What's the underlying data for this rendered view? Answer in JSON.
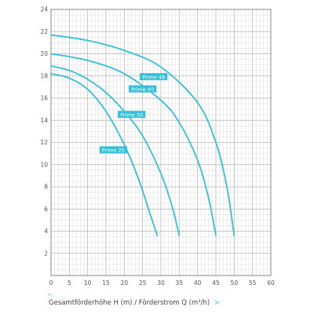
{
  "chart_data": {
    "type": "line",
    "xlabel": "Gesamtförderhöhe H (m) / Förderstrom Q (m³/h)",
    "xlim": [
      0,
      60
    ],
    "ylim": [
      0,
      24
    ],
    "x_ticks": [
      0,
      5,
      10,
      15,
      20,
      25,
      30,
      35,
      40,
      45,
      50,
      55,
      60
    ],
    "y_ticks": [
      2,
      4,
      6,
      8,
      10,
      12,
      14,
      16,
      18,
      20,
      22,
      24
    ],
    "grid": true,
    "line_color": "#33c0d8",
    "series": [
      {
        "name": "Prime 25",
        "x": [
          0,
          5,
          10,
          15,
          20,
          24,
          27,
          29
        ],
        "y": [
          18.2,
          17.8,
          16.8,
          14.8,
          11.8,
          8.6,
          5.6,
          3.6
        ],
        "label_at": [
          17,
          11.3
        ]
      },
      {
        "name": "Prime 30",
        "x": [
          0,
          5,
          10,
          15,
          20,
          25,
          30,
          33,
          35
        ],
        "y": [
          18.9,
          18.5,
          17.7,
          16.5,
          14.8,
          12.6,
          9.2,
          6.3,
          3.6
        ],
        "label_at": [
          22,
          14.5
        ]
      },
      {
        "name": "Prime 40",
        "x": [
          0,
          10,
          20,
          30,
          35,
          40,
          43,
          45
        ],
        "y": [
          20,
          19.4,
          18.2,
          15.8,
          13.8,
          10.4,
          7.0,
          3.6
        ],
        "label_at": [
          25,
          16.8
        ]
      },
      {
        "name": "Prime 48",
        "x": [
          0,
          10,
          20,
          30,
          40,
          45,
          48,
          50
        ],
        "y": [
          21.7,
          21.2,
          20.3,
          18.8,
          15.6,
          12.0,
          8.0,
          3.6
        ],
        "label_at": [
          28,
          17.9
        ]
      }
    ]
  },
  "ui": {
    "caption_prefix": "^",
    "caption_suffix": ">"
  }
}
